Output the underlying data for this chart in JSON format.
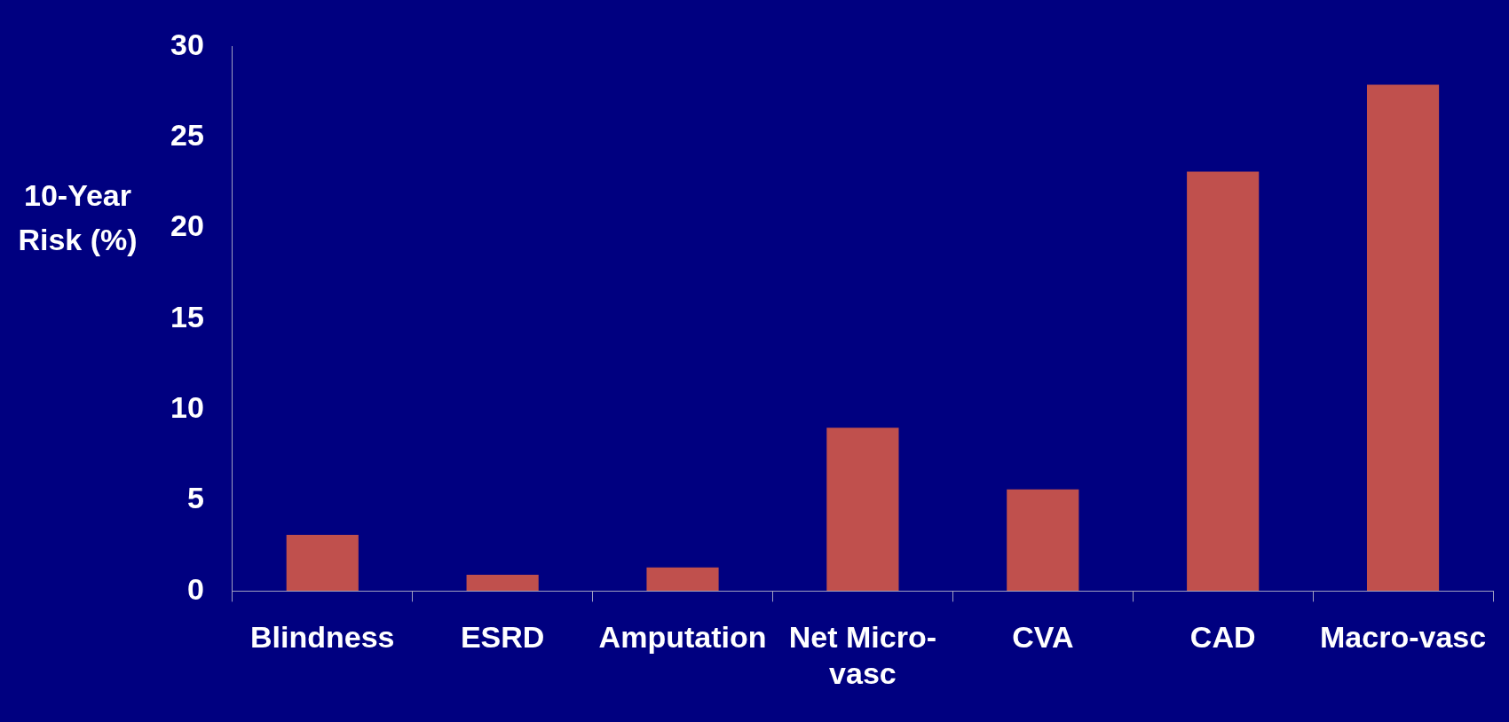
{
  "chart_data": {
    "type": "bar",
    "ylabel": "10-Year Risk (%)",
    "categories": [
      "Blindness",
      "ESRD",
      "Amputation",
      "Net Micro-vasc",
      "CVA",
      "CAD",
      "Macro-vasc"
    ],
    "values": [
      3.1,
      0.9,
      1.3,
      9.0,
      5.6,
      23.1,
      27.9
    ],
    "color": "#c0504d",
    "ylim": [
      0,
      30
    ],
    "yticks": [
      0,
      5,
      10,
      15,
      20,
      25,
      30
    ],
    "grid": false,
    "legend": false
  }
}
